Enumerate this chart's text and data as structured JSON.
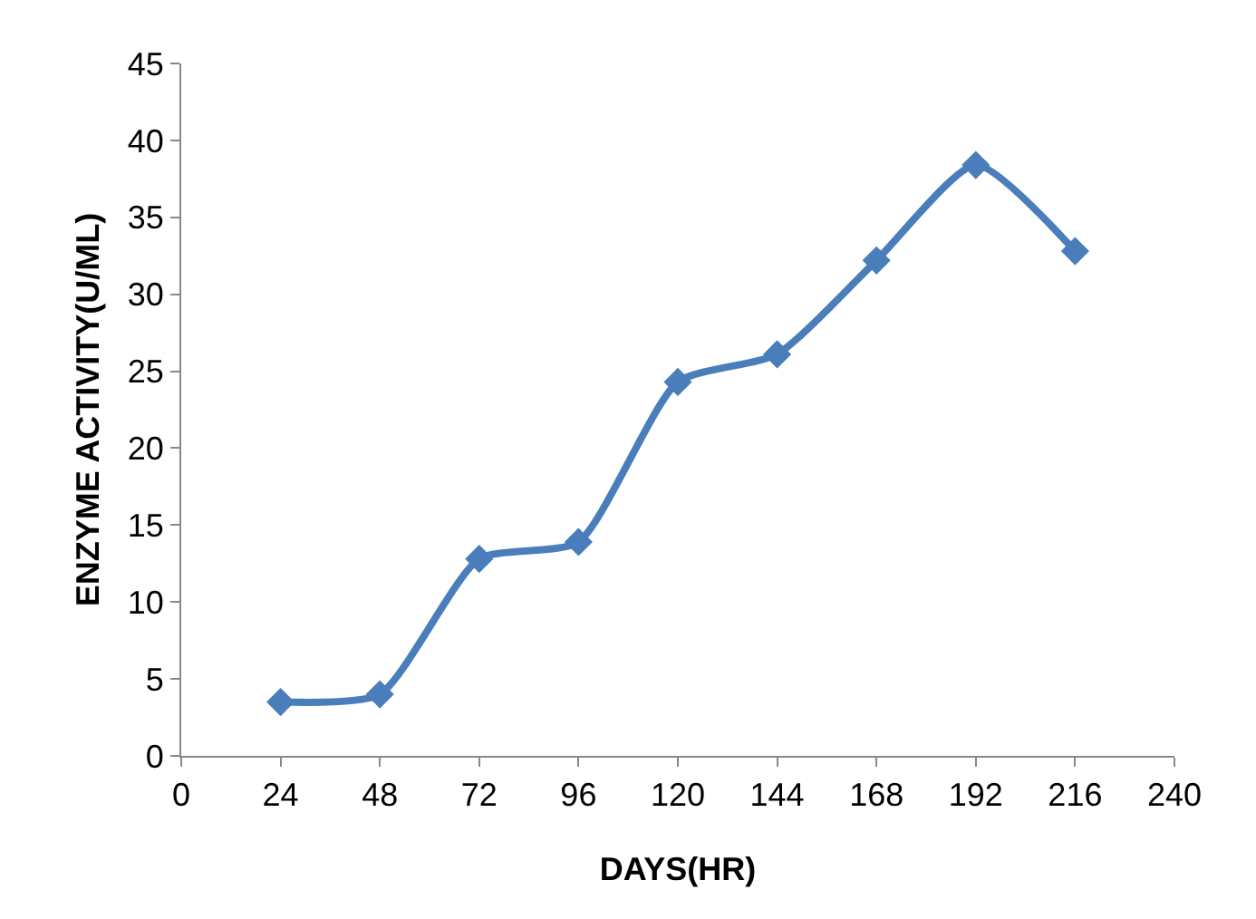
{
  "chart_data": {
    "type": "line",
    "xlabel": "DAYS(HR)",
    "ylabel": "ENZYME ACTIVITY(U/ML)",
    "x": [
      24,
      48,
      72,
      96,
      120,
      144,
      168,
      192,
      216
    ],
    "series": [
      {
        "color": "#4a7ebb",
        "values": [
          3.5,
          4.0,
          12.8,
          13.9,
          24.3,
          26.1,
          32.2,
          38.4,
          32.8
        ]
      }
    ],
    "xlim": [
      0,
      240
    ],
    "xticks": [
      0,
      24,
      48,
      72,
      96,
      120,
      144,
      168,
      192,
      216,
      240
    ],
    "ylim": [
      0,
      45
    ],
    "yticks": [
      0,
      5,
      10,
      15,
      20,
      25,
      30,
      35,
      40,
      45
    ],
    "grid": false,
    "marker": "diamond",
    "line_style": "solid"
  }
}
